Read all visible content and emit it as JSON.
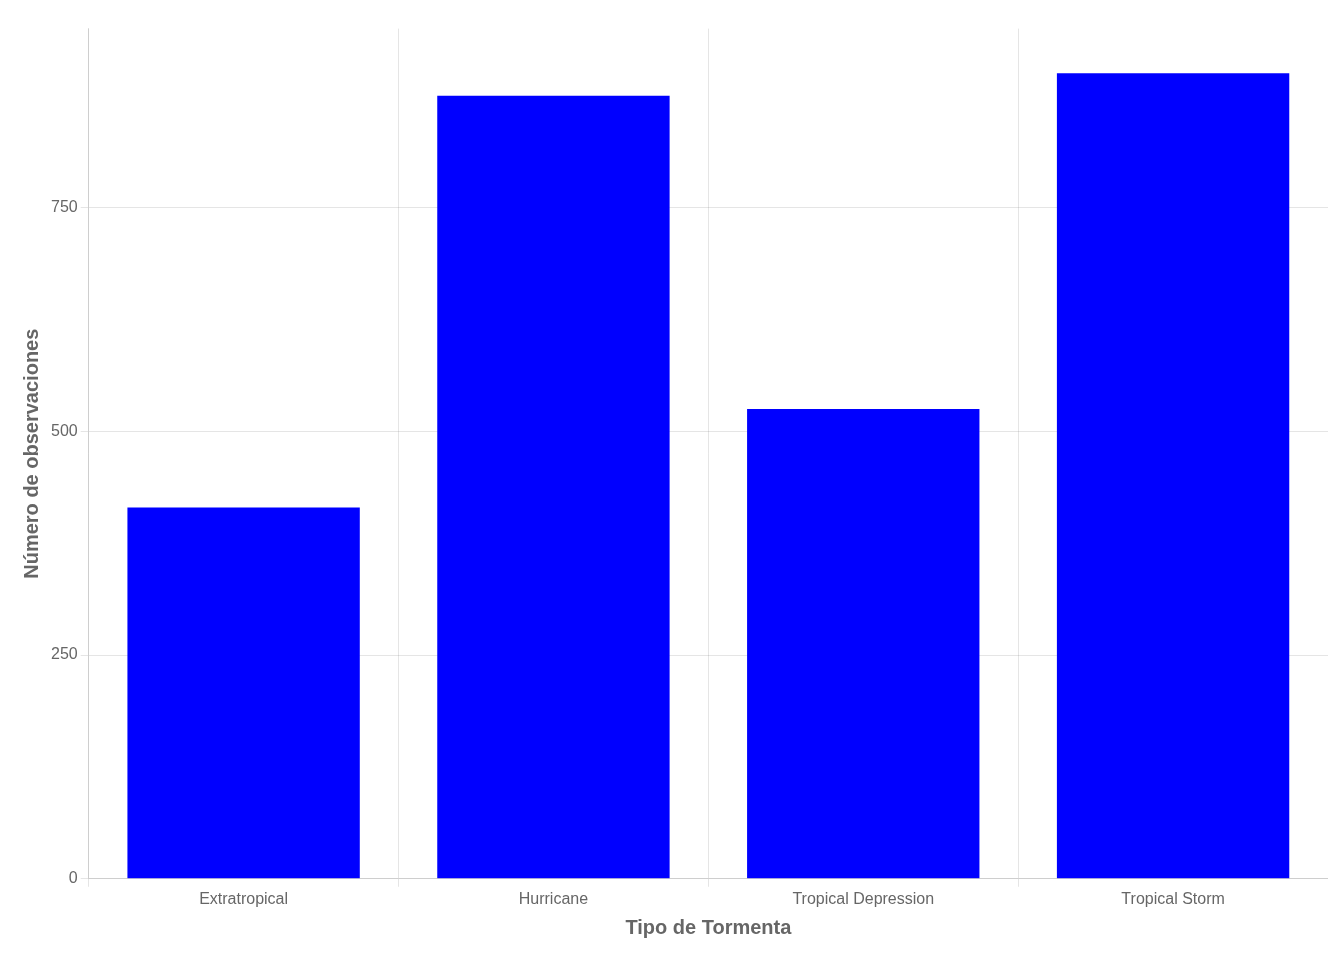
{
  "chart_data": {
    "type": "bar",
    "categories": [
      "Extratropical",
      "Hurricane",
      "Tropical Depression",
      "Tropical Storm"
    ],
    "values": [
      415,
      875,
      525,
      900
    ],
    "color": "#0000FF",
    "xlabel": "Tipo de Tormenta",
    "ylabel": "Número de observaciones",
    "ylim": [
      0,
      950
    ],
    "yticks": [
      0,
      250,
      500,
      750
    ],
    "grid": true
  }
}
